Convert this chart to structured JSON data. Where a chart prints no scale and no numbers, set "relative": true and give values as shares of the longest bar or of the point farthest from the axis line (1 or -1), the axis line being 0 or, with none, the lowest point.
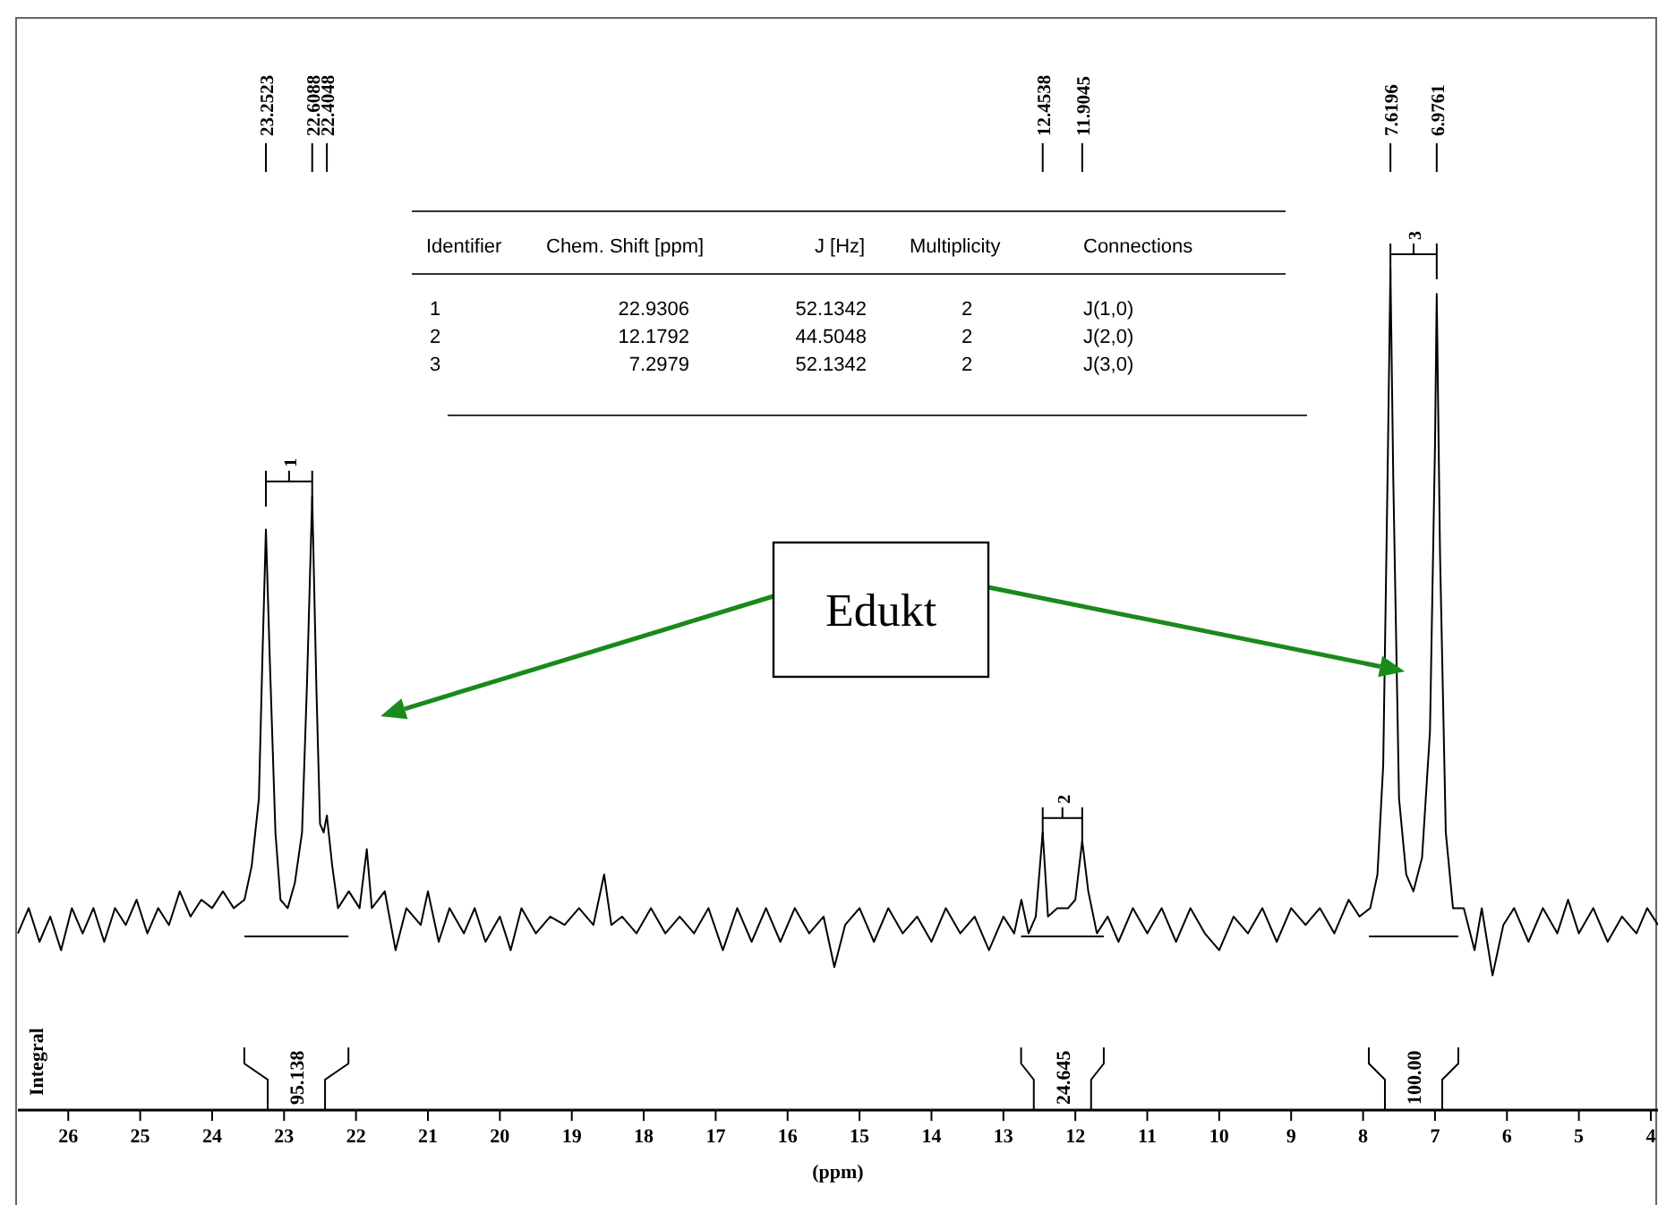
{
  "chart_data": [
    {
      "type": "line",
      "relative": true,
      "xlim": [
        26.7,
        3.9
      ],
      "xticks": [
        26,
        25,
        24,
        23,
        22,
        21,
        20,
        19,
        18,
        17,
        16,
        15,
        14,
        13,
        12,
        11,
        10,
        9,
        8,
        7,
        6,
        5,
        4
      ],
      "xlabel": "(ppm)",
      "ylabel": "Integral",
      "series": [
        {
          "color": "#000000",
          "x": [
            26.7,
            26.55,
            26.4,
            26.25,
            26.1,
            25.95,
            25.8,
            25.65,
            25.5,
            25.35,
            25.2,
            25.05,
            24.9,
            24.75,
            24.6,
            24.45,
            24.3,
            24.15,
            24.0,
            23.85,
            23.7,
            23.55,
            23.45,
            23.35,
            23.3,
            23.2523,
            23.2,
            23.12,
            23.05,
            22.95,
            22.85,
            22.75,
            22.68,
            22.6088,
            22.55,
            22.5,
            22.45,
            22.4048,
            22.33,
            22.25,
            22.1,
            21.95,
            21.85,
            21.78,
            21.6,
            21.45,
            21.3,
            21.1,
            21.0,
            20.85,
            20.7,
            20.5,
            20.35,
            20.2,
            20.0,
            19.85,
            19.7,
            19.5,
            19.3,
            19.1,
            18.9,
            18.7,
            18.55,
            18.45,
            18.3,
            18.1,
            17.9,
            17.7,
            17.5,
            17.3,
            17.1,
            16.9,
            16.7,
            16.5,
            16.3,
            16.1,
            15.9,
            15.7,
            15.5,
            15.35,
            15.2,
            15.0,
            14.8,
            14.6,
            14.4,
            14.2,
            14.0,
            13.8,
            13.6,
            13.4,
            13.2,
            13.0,
            12.85,
            12.75,
            12.65,
            12.55,
            12.4538,
            12.38,
            12.25,
            12.1,
            12.0,
            11.9045,
            11.82,
            11.7,
            11.55,
            11.4,
            11.2,
            11.0,
            10.8,
            10.6,
            10.4,
            10.2,
            10.0,
            9.8,
            9.6,
            9.4,
            9.2,
            9.0,
            8.8,
            8.6,
            8.4,
            8.2,
            8.05,
            7.9,
            7.8,
            7.72,
            7.66,
            7.6196,
            7.58,
            7.5,
            7.4,
            7.3,
            7.18,
            7.07,
            7.0,
            6.9761,
            6.93,
            6.85,
            6.75,
            6.6,
            6.45,
            6.35,
            6.2,
            6.05,
            5.9,
            5.7,
            5.5,
            5.3,
            5.15,
            5.0,
            4.8,
            4.6,
            4.4,
            4.2,
            4.05,
            3.9
          ],
          "values": [
            0.21,
            0.24,
            0.2,
            0.23,
            0.19,
            0.24,
            0.21,
            0.24,
            0.2,
            0.24,
            0.22,
            0.25,
            0.21,
            0.24,
            0.22,
            0.26,
            0.23,
            0.25,
            0.24,
            0.26,
            0.24,
            0.25,
            0.29,
            0.37,
            0.54,
            0.69,
            0.54,
            0.33,
            0.25,
            0.24,
            0.27,
            0.33,
            0.51,
            0.73,
            0.5,
            0.34,
            0.33,
            0.35,
            0.29,
            0.24,
            0.26,
            0.24,
            0.31,
            0.24,
            0.26,
            0.19,
            0.24,
            0.22,
            0.26,
            0.2,
            0.24,
            0.21,
            0.24,
            0.2,
            0.23,
            0.19,
            0.24,
            0.21,
            0.23,
            0.22,
            0.24,
            0.22,
            0.28,
            0.22,
            0.23,
            0.21,
            0.24,
            0.21,
            0.23,
            0.21,
            0.24,
            0.19,
            0.24,
            0.2,
            0.24,
            0.2,
            0.24,
            0.21,
            0.23,
            0.17,
            0.22,
            0.24,
            0.2,
            0.24,
            0.21,
            0.23,
            0.2,
            0.24,
            0.21,
            0.23,
            0.19,
            0.23,
            0.21,
            0.25,
            0.21,
            0.23,
            0.33,
            0.23,
            0.24,
            0.24,
            0.25,
            0.32,
            0.26,
            0.21,
            0.23,
            0.2,
            0.24,
            0.21,
            0.24,
            0.2,
            0.24,
            0.21,
            0.19,
            0.23,
            0.21,
            0.24,
            0.2,
            0.24,
            0.22,
            0.24,
            0.21,
            0.25,
            0.23,
            0.24,
            0.28,
            0.41,
            0.75,
            1.0,
            0.75,
            0.37,
            0.28,
            0.26,
            0.3,
            0.45,
            0.79,
            0.97,
            0.66,
            0.33,
            0.24,
            0.24,
            0.19,
            0.24,
            0.16,
            0.22,
            0.24,
            0.2,
            0.24,
            0.21,
            0.25,
            0.21,
            0.24,
            0.2,
            0.23,
            0.21,
            0.24,
            0.22
          ]
        }
      ],
      "annotations": [
        {
          "text": "23.2523",
          "x": 23.2523
        },
        {
          "text": "22.6088",
          "x": 22.6088
        },
        {
          "text": "22.4048",
          "x": 22.4048
        },
        {
          "text": "12.4538",
          "x": 12.4538
        },
        {
          "text": "11.9045",
          "x": 11.9045
        },
        {
          "text": "7.6196",
          "x": 7.6196
        },
        {
          "text": "6.9761",
          "x": 6.9761
        },
        "1",
        "2",
        "3",
        "95.138",
        "24.645",
        "100.00",
        "Edukt"
      ]
    },
    {
      "type": "other",
      "annotations": [
        "Identifier",
        "Chem. Shift [ppm]",
        "J [Hz]",
        "Multiplicity",
        "Connections",
        "1",
        "22.9306",
        "52.1342",
        "2",
        "J(1,0)",
        "2",
        "12.1792",
        "44.5048",
        "2",
        "J(2,0)",
        "3",
        "7.2979",
        "52.1342",
        "2",
        "J(3,0)"
      ]
    }
  ]
}
